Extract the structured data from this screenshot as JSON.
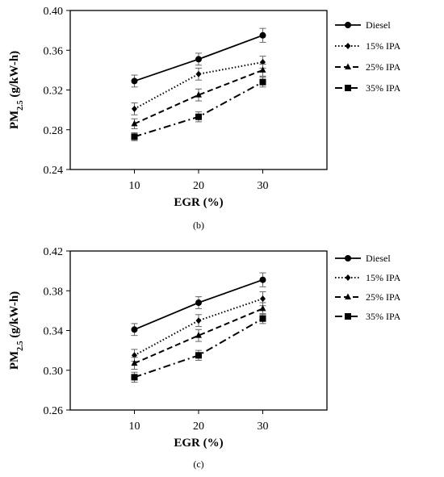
{
  "chart_data": [
    {
      "type": "line",
      "panel_label": "(b)",
      "xlabel": "EGR (%)",
      "ylabel_main": "PM",
      "ylabel_sub": "2.5",
      "ylabel_unit": " (g/kW-h)",
      "x": [
        10,
        20,
        30
      ],
      "x_tick_labels": [
        "10",
        "20",
        "30"
      ],
      "xlim": [
        0,
        40
      ],
      "ylim": [
        0.24,
        0.4
      ],
      "y_ticks": [
        0.24,
        0.28,
        0.32,
        0.36,
        0.4
      ],
      "y_tick_labels": [
        "0.24",
        "0.28",
        "0.32",
        "0.36",
        "0.40"
      ],
      "grid": false,
      "legend_position": "right",
      "series": [
        {
          "name": "Diesel",
          "values": [
            0.329,
            0.351,
            0.375
          ],
          "errors": [
            0.006,
            0.006,
            0.007
          ],
          "style": "solid",
          "marker": "circle"
        },
        {
          "name": "15% IPA",
          "values": [
            0.301,
            0.336,
            0.348
          ],
          "errors": [
            0.006,
            0.006,
            0.006
          ],
          "style": "dotted",
          "marker": "diamond"
        },
        {
          "name": "25% IPA",
          "values": [
            0.286,
            0.315,
            0.34
          ],
          "errors": [
            0.005,
            0.006,
            0.006
          ],
          "style": "dashed",
          "marker": "triangle"
        },
        {
          "name": "35% IPA",
          "values": [
            0.273,
            0.293,
            0.328
          ],
          "errors": [
            0.004,
            0.005,
            0.005
          ],
          "style": "dashdot",
          "marker": "square"
        }
      ]
    },
    {
      "type": "line",
      "panel_label": "(c)",
      "xlabel": "EGR (%)",
      "ylabel_main": "PM",
      "ylabel_sub": "2.5",
      "ylabel_unit": " (g/kW-h)",
      "x": [
        10,
        20,
        30
      ],
      "x_tick_labels": [
        "10",
        "20",
        "30"
      ],
      "xlim": [
        0,
        40
      ],
      "ylim": [
        0.26,
        0.42
      ],
      "y_ticks": [
        0.26,
        0.3,
        0.34,
        0.38,
        0.42
      ],
      "y_tick_labels": [
        "0.26",
        "0.30",
        "0.34",
        "0.38",
        "0.42"
      ],
      "grid": false,
      "legend_position": "right",
      "series": [
        {
          "name": "Diesel",
          "values": [
            0.341,
            0.368,
            0.391
          ],
          "errors": [
            0.006,
            0.006,
            0.007
          ],
          "style": "solid",
          "marker": "circle"
        },
        {
          "name": "15% IPA",
          "values": [
            0.315,
            0.35,
            0.372
          ],
          "errors": [
            0.006,
            0.006,
            0.007
          ],
          "style": "dotted",
          "marker": "diamond"
        },
        {
          "name": "25% IPA",
          "values": [
            0.307,
            0.335,
            0.362
          ],
          "errors": [
            0.006,
            0.006,
            0.006
          ],
          "style": "dashed",
          "marker": "triangle"
        },
        {
          "name": "35% IPA",
          "values": [
            0.293,
            0.315,
            0.352
          ],
          "errors": [
            0.005,
            0.005,
            0.005
          ],
          "style": "dashdot",
          "marker": "square"
        }
      ]
    }
  ]
}
